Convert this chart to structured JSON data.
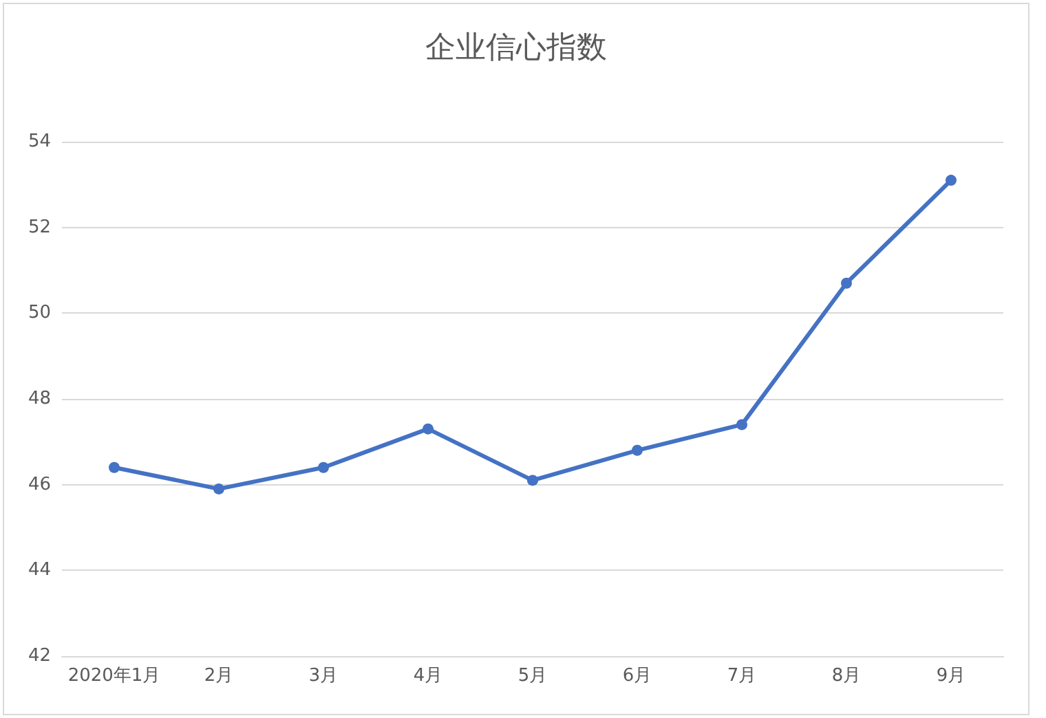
{
  "chart_data": {
    "type": "line",
    "title": "企业信心指数",
    "categories": [
      "2020年1月",
      "2月",
      "3月",
      "4月",
      "5月",
      "6月",
      "7月",
      "8月",
      "9月"
    ],
    "series": [
      {
        "color": "#4472c4",
        "values": [
          46.4,
          45.9,
          46.4,
          47.3,
          46.1,
          46.8,
          47.4,
          50.7,
          53.1
        ]
      }
    ],
    "ylim": [
      42,
      54
    ],
    "yticks": [
      42,
      44,
      46,
      48,
      50,
      52,
      54
    ],
    "grid": "y",
    "marker": "circle",
    "line_style": "solid"
  }
}
